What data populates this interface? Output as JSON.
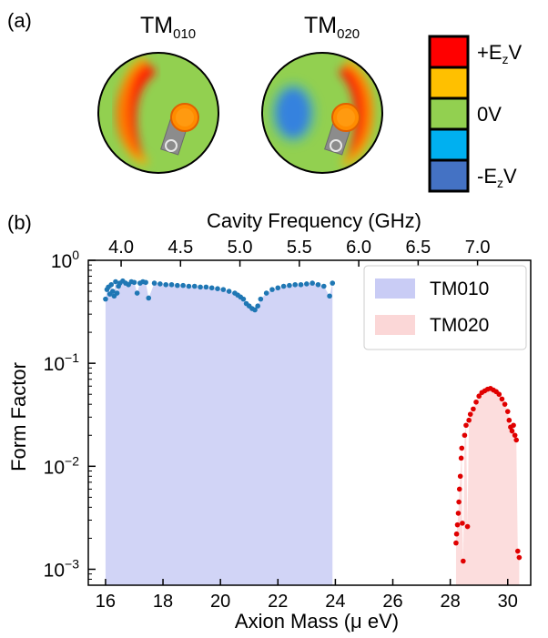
{
  "panel_a": {
    "label": "(a)",
    "modes": [
      {
        "main": "TM",
        "sub": "010"
      },
      {
        "main": "TM",
        "sub": "020"
      }
    ],
    "colorbar": [
      {
        "label_main": "+E",
        "label_sub": "z",
        "label_tail": "V",
        "color": "#ff0000"
      },
      {
        "label_main": "",
        "label_sub": "",
        "label_tail": "",
        "color": "#ffc000"
      },
      {
        "label_main": "0V",
        "label_sub": "",
        "label_tail": "",
        "color": "#92d050"
      },
      {
        "label_main": "",
        "label_sub": "",
        "label_tail": "",
        "color": "#00b0f0"
      },
      {
        "label_main": "-E",
        "label_sub": "z",
        "label_tail": "V",
        "color": "#4472c4"
      }
    ]
  },
  "panel_b": {
    "label": "(b)"
  },
  "chart_data": {
    "type": "scatter",
    "xlabel": "Axion Mass (μ eV)",
    "ylabel": "Form Factor",
    "top_xlabel": "Cavity Frequency (GHz)",
    "xlim": [
      15.4,
      30.8
    ],
    "ylim": [
      0.0007,
      1.0
    ],
    "yscale": "log",
    "xticks": [
      16,
      18,
      20,
      22,
      24,
      26,
      28,
      30
    ],
    "xtick_labels": [
      "16",
      "18",
      "20",
      "22",
      "24",
      "26",
      "28",
      "30"
    ],
    "yticks": [
      0.001,
      0.01,
      0.1,
      1
    ],
    "ytick_labels": [
      {
        "base": "10",
        "exp": "−3"
      },
      {
        "base": "10",
        "exp": "−2"
      },
      {
        "base": "10",
        "exp": "−1"
      },
      {
        "base": "10",
        "exp": "0"
      }
    ],
    "top_xticks": [
      4.0,
      4.5,
      5.0,
      5.5,
      6.0,
      6.5,
      7.0
    ],
    "top_xtick_labels": [
      "4.0",
      "4.5",
      "5.0",
      "5.5",
      "6.0",
      "6.5",
      "7.0"
    ],
    "legend_position": "top-right",
    "series": [
      {
        "name": "TM010",
        "marker_color": "#1f77b4",
        "fill_color": "#c9ccf5",
        "x": [
          16.0,
          16.05,
          16.1,
          16.15,
          16.2,
          16.25,
          16.3,
          16.35,
          16.4,
          16.45,
          16.5,
          16.6,
          16.7,
          16.8,
          16.9,
          17.0,
          17.1,
          17.2,
          17.3,
          17.4,
          17.5,
          17.7,
          17.9,
          18.1,
          18.3,
          18.5,
          18.7,
          18.9,
          19.1,
          19.3,
          19.5,
          19.7,
          19.9,
          20.1,
          20.3,
          20.5,
          20.6,
          20.7,
          20.8,
          20.9,
          21.0,
          21.1,
          21.2,
          21.3,
          21.4,
          21.6,
          21.8,
          22.0,
          22.2,
          22.4,
          22.6,
          22.8,
          23.0,
          23.2,
          23.4,
          23.6,
          23.8,
          23.9
        ],
        "y": [
          0.42,
          0.52,
          0.55,
          0.47,
          0.58,
          0.5,
          0.45,
          0.62,
          0.48,
          0.56,
          0.6,
          0.63,
          0.6,
          0.58,
          0.62,
          0.61,
          0.48,
          0.6,
          0.62,
          0.61,
          0.43,
          0.6,
          0.59,
          0.58,
          0.58,
          0.57,
          0.57,
          0.56,
          0.56,
          0.55,
          0.55,
          0.54,
          0.53,
          0.52,
          0.5,
          0.48,
          0.46,
          0.44,
          0.42,
          0.38,
          0.36,
          0.34,
          0.33,
          0.36,
          0.42,
          0.48,
          0.52,
          0.54,
          0.56,
          0.57,
          0.58,
          0.58,
          0.59,
          0.6,
          0.58,
          0.56,
          0.45,
          0.6
        ]
      },
      {
        "name": "TM020",
        "marker_color": "#e00000",
        "fill_color": "#fbd7d7",
        "x": [
          28.2,
          28.22,
          28.25,
          28.28,
          28.3,
          28.32,
          28.35,
          28.38,
          28.4,
          28.42,
          28.45,
          28.5,
          28.55,
          28.6,
          28.65,
          28.7,
          28.8,
          28.9,
          29.0,
          29.1,
          29.2,
          29.3,
          29.4,
          29.5,
          29.6,
          29.7,
          29.8,
          29.9,
          30.0,
          30.05,
          30.1,
          30.15,
          30.2,
          30.25,
          30.3,
          30.35,
          30.4
        ],
        "y": [
          0.0018,
          0.0022,
          0.0027,
          0.0035,
          0.0045,
          0.006,
          0.008,
          0.012,
          0.015,
          0.0028,
          0.0012,
          0.02,
          0.025,
          0.0026,
          0.028,
          0.032,
          0.036,
          0.042,
          0.048,
          0.052,
          0.054,
          0.056,
          0.057,
          0.055,
          0.053,
          0.05,
          0.045,
          0.04,
          0.034,
          0.028,
          0.024,
          0.022,
          0.025,
          0.02,
          0.018,
          0.0015,
          0.0013
        ]
      }
    ]
  }
}
